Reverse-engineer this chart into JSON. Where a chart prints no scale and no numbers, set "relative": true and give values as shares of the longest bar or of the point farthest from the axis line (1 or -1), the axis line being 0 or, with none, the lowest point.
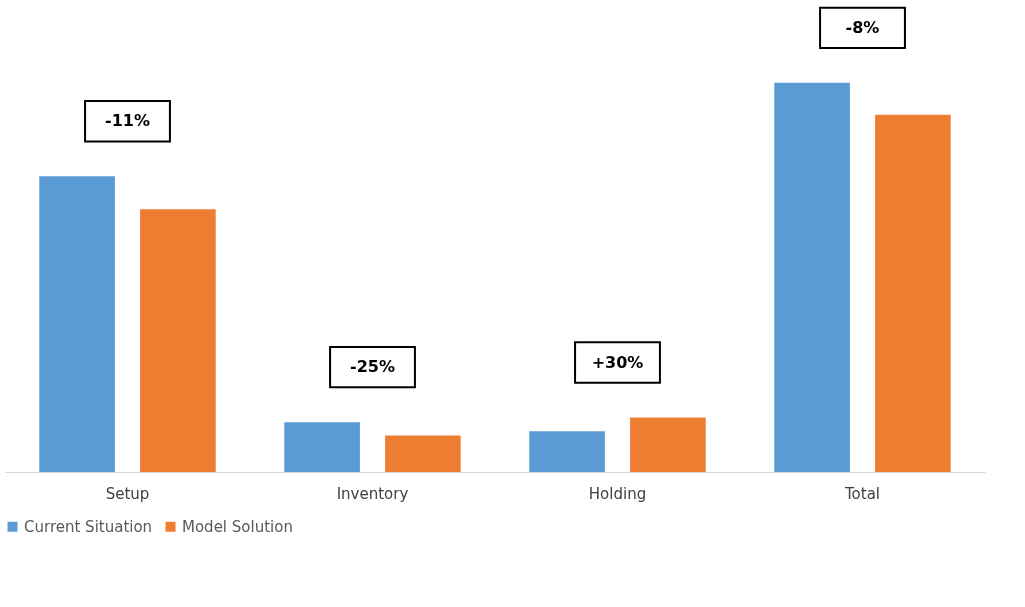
{
  "chart_data": {
    "type": "bar",
    "relative": true,
    "categories": [
      "Setup",
      "Inventory",
      "Holding",
      "Total"
    ],
    "series": [
      {
        "name": "Current Situation",
        "color": "#5b9bd5",
        "values": [
          0.76,
          0.128,
          0.105,
          1
        ]
      },
      {
        "name": "Model Solution",
        "color": "#ed7d31",
        "values": [
          0.675,
          0.094,
          0.14,
          0.918
        ]
      }
    ],
    "annotations": [
      "-11%",
      "-25%",
      "+30%",
      "-8%"
    ],
    "legend": "bottom"
  }
}
